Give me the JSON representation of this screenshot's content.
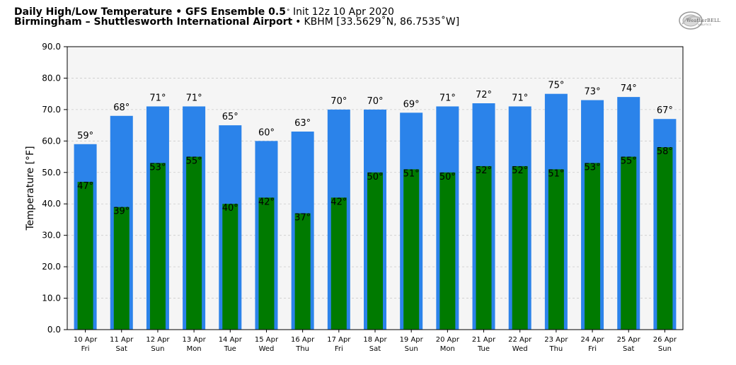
{
  "header": {
    "title_bold": "Daily High/Low Temperature • GFS Ensemble 0.5",
    "degree": "°",
    "init": "Init 12z 10 Apr 2020",
    "location_bold": "Birmingham – Shuttlesworth International Airport",
    "bullet": "•",
    "station": "KBHM [33.5629˚N, 86.7535˚W]"
  },
  "logo": {
    "text": "WeatherBELL",
    "sub": "ANALYTICS"
  },
  "colors": {
    "high": "#2b83ea",
    "low": "#007a00",
    "plot_bg": "#f5f5f5",
    "grid": "#cccccc"
  },
  "chart_data": {
    "type": "bar",
    "title": "Daily High/Low Temperature",
    "xlabel": "",
    "ylabel": "Temperature [°F]",
    "ylim": [
      0,
      90
    ],
    "yticks": [
      "0.0",
      "10.0",
      "20.0",
      "30.0",
      "40.0",
      "50.0",
      "60.0",
      "70.0",
      "80.0",
      "90.0"
    ],
    "dates": [
      "10 Apr",
      "11 Apr",
      "12 Apr",
      "13 Apr",
      "14 Apr",
      "15 Apr",
      "16 Apr",
      "17 Apr",
      "18 Apr",
      "19 Apr",
      "20 Apr",
      "21 Apr",
      "22 Apr",
      "23 Apr",
      "24 Apr",
      "25 Apr",
      "26 Apr"
    ],
    "days": [
      "Fri",
      "Sat",
      "Sun",
      "Mon",
      "Tue",
      "Wed",
      "Thu",
      "Fri",
      "Sat",
      "Sun",
      "Mon",
      "Tue",
      "Wed",
      "Thu",
      "Fri",
      "Sat",
      "Sun"
    ],
    "series": [
      {
        "name": "High",
        "values": [
          59,
          68,
          71,
          71,
          65,
          60,
          63,
          70,
          70,
          69,
          71,
          72,
          71,
          75,
          73,
          74,
          67
        ]
      },
      {
        "name": "Low",
        "values": [
          47,
          39,
          53,
          55,
          40,
          42,
          37,
          42,
          50,
          51,
          50,
          52,
          52,
          51,
          53,
          55,
          58
        ]
      }
    ]
  }
}
